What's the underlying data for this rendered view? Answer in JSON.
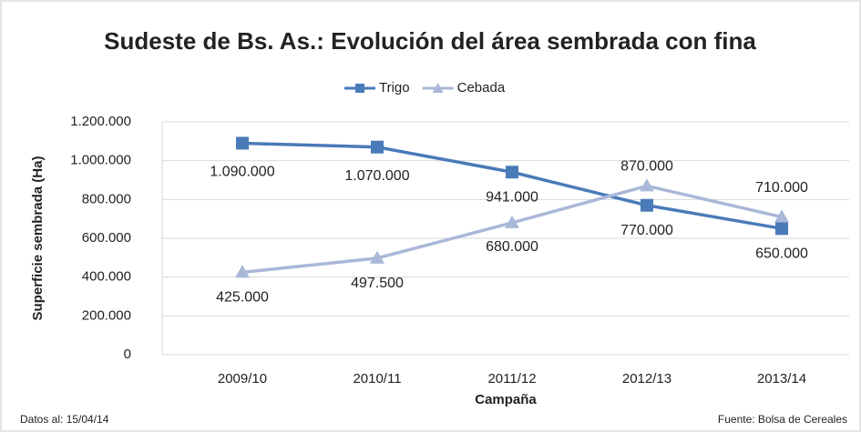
{
  "chart_data": {
    "type": "line",
    "title": "Sudeste de Bs. As.: Evolución del área sembrada con fina",
    "x_label": "Campaña",
    "y_label": "Superficie sembrada (Ha)",
    "categories": [
      "2009/10",
      "2010/11",
      "2011/12",
      "2012/13",
      "2013/14"
    ],
    "series": [
      {
        "name": "Trigo",
        "color": "#4a7ab8",
        "marker": "square",
        "values": [
          1090000,
          1070000,
          941000,
          770000,
          650000
        ],
        "value_labels": [
          "1.090.000",
          "1.070.000",
          "941.000",
          "770.000",
          "650.000"
        ]
      },
      {
        "name": "Cebada",
        "color": "#a9b8d8",
        "marker": "triangle",
        "values": [
          425000,
          497500,
          680000,
          870000,
          710000
        ],
        "value_labels": [
          "425.000",
          "497.500",
          "680.000",
          "870.000",
          "710.000"
        ]
      }
    ],
    "ylim": [
      0,
      1200000
    ],
    "yticks": [
      0,
      {
        "value": 200000,
        "label": "200.000"
      },
      {
        "value": 400000,
        "label": "400.000"
      },
      {
        "value": 600000,
        "label": "600.000"
      },
      {
        "value": 800000,
        "label": "800.000"
      },
      {
        "value": 1000000,
        "label": "1.000.000"
      },
      {
        "value": 1200000,
        "label": "1.200.000"
      }
    ],
    "grid": true,
    "legend": "top",
    "annotations": [
      "Datos al: 15/04/14",
      "Fuente: Bolsa de Cereales"
    ]
  }
}
